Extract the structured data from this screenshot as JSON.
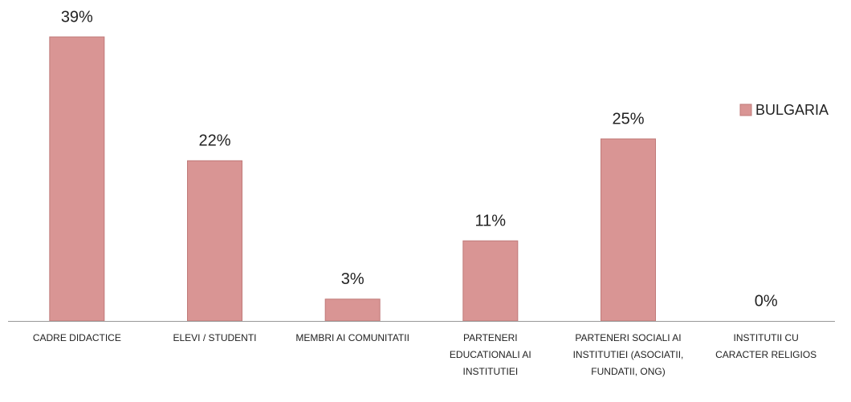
{
  "chart_data": {
    "type": "bar",
    "categories": [
      "CADRE DIDACTICE",
      "ELEVI / STUDENTI",
      "MEMBRI AI COMUNITATII",
      "PARTENERI EDUCATIONALI AI INSTITUTIEI",
      "PARTENERI SOCIALI AI INSTITUTIEI (ASOCIATII, FUNDATII, ONG)",
      "INSTITUTII CU CARACTER RELIGIOS"
    ],
    "series": [
      {
        "name": "BULGARIA",
        "color": "#d99594",
        "values": [
          39,
          22,
          3,
          11,
          25,
          0
        ],
        "value_labels": [
          "39%",
          "22%",
          "3%",
          "11%",
          "25%",
          "0%"
        ]
      }
    ],
    "legend": "right"
  }
}
